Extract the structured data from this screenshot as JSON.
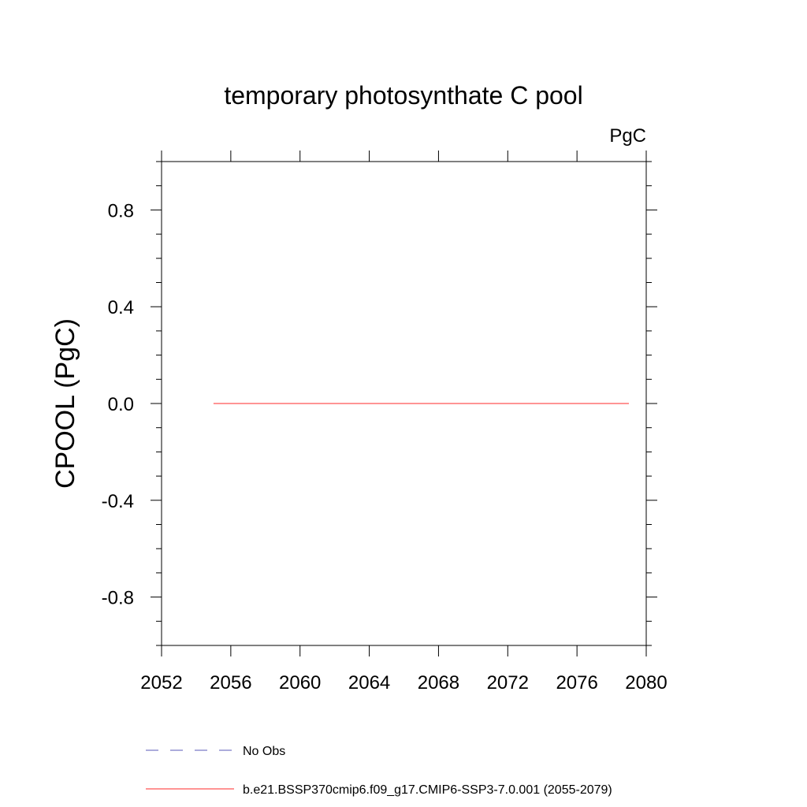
{
  "chart_data": {
    "type": "line",
    "title": "temporary photosynthate C pool",
    "units_label": "PgC",
    "ylabel": "CPOOL  (PgC)",
    "xlabel": "",
    "xlim": [
      2052,
      2080
    ],
    "ylim": [
      -1.0,
      1.0
    ],
    "x_ticks": [
      2052,
      2056,
      2060,
      2064,
      2068,
      2072,
      2076,
      2080
    ],
    "x_tick_labels": [
      "2052",
      "2056",
      "2060",
      "2064",
      "2068",
      "2072",
      "2076",
      "2080"
    ],
    "y_ticks": [
      0.8,
      0.4,
      0.0,
      -0.4,
      -0.8
    ],
    "y_tick_labels": [
      "0.8",
      "0.4",
      "0.0",
      "-0.4",
      "-0.8"
    ],
    "grid": false,
    "legend_position": "bottom",
    "series": [
      {
        "name": "No Obs",
        "color": "#7b7bc8",
        "style": "dashed",
        "x": [],
        "y": []
      },
      {
        "name": "b.e21.BSSP370cmip6.f09_g17.CMIP6-SSP3-7.0.001 (2055-2079)",
        "color": "#ff5555",
        "style": "solid",
        "x": [
          2055,
          2079
        ],
        "y": [
          0.0,
          0.0
        ]
      }
    ]
  }
}
